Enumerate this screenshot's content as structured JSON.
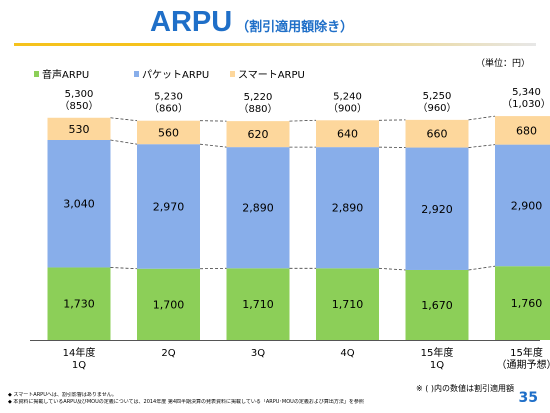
{
  "slide": {
    "title": "ARPU",
    "title_sub": "（割引適用額除き）",
    "unit_note": "（単位：円）",
    "footnote_right": "※ ( )内の数値は割引適用額",
    "footnotes": [
      "◆ スマートARPUへは、割引影響はありません。",
      "◆ 本資料に掲載しているARPU及びMOUの定義については、2014年度 第4四半期決算の発表資料に掲載している「ARPU･MOUの定義および算出方法」を参照"
    ],
    "page_number": "35"
  },
  "legend": [
    {
      "label": "音声ARPU",
      "color": "#8ccf58"
    },
    {
      "label": "パケットARPU",
      "color": "#88aeea"
    },
    {
      "label": "スマートARPU",
      "color": "#fdd79c"
    }
  ],
  "chart_data": {
    "type": "bar",
    "stacked": true,
    "categories": [
      "14年度\n1Q",
      "2Q",
      "3Q",
      "4Q",
      "15年度\n1Q",
      "15年度\n（通期予想）"
    ],
    "series": [
      {
        "name": "音声ARPU",
        "values": [
          1730,
          1700,
          1710,
          1710,
          1670,
          1760
        ],
        "labels": [
          "1,730",
          "1,700",
          "1,710",
          "1,710",
          "1,670",
          "1,760"
        ],
        "color": "#8ccf58"
      },
      {
        "name": "パケットARPU",
        "values": [
          3040,
          2970,
          2890,
          2890,
          2920,
          2900
        ],
        "labels": [
          "3,040",
          "2,970",
          "2,890",
          "2,890",
          "2,920",
          "2,900"
        ],
        "color": "#88aeea"
      },
      {
        "name": "スマートARPU",
        "values": [
          530,
          560,
          620,
          640,
          660,
          680
        ],
        "labels": [
          "530",
          "560",
          "620",
          "640",
          "660",
          "680"
        ],
        "color": "#fdd79c"
      }
    ],
    "totals": [
      5300,
      5230,
      5220,
      5240,
      5250,
      5340
    ],
    "total_labels": [
      "5,300",
      "5,230",
      "5,220",
      "5,240",
      "5,250",
      "5,340"
    ],
    "discounts": [
      850,
      860,
      880,
      900,
      960,
      1030
    ],
    "discount_labels": [
      "（850）",
      "（860）",
      "（880）",
      "（900）",
      "（960）",
      "（1,030）"
    ],
    "ylim": [
      0,
      5700
    ],
    "connector_lines": "dashed",
    "grid": false
  }
}
